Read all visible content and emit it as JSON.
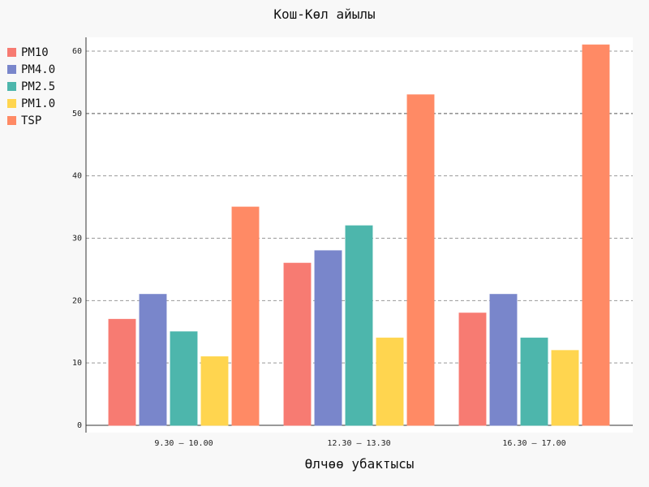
{
  "chart_data": {
    "type": "bar",
    "title": "Кош-Көл айылы",
    "xlabel": "Өлчөө убактысы",
    "ylabel": "",
    "ylim": [
      0,
      62
    ],
    "yticks": [
      0,
      10,
      20,
      30,
      40,
      50,
      60
    ],
    "grid": true,
    "legend_position": "top-left",
    "categories": [
      "9.30 – 10.00",
      "12.30 – 13.30",
      "16.30 – 17.00"
    ],
    "series": [
      {
        "name": "PM10",
        "color": "#f77b72",
        "values": [
          17,
          26,
          18
        ]
      },
      {
        "name": "PM4.0",
        "color": "#7986cb",
        "values": [
          21,
          28,
          21
        ]
      },
      {
        "name": "PM2.5",
        "color": "#4db6ac",
        "values": [
          15,
          32,
          14
        ]
      },
      {
        "name": "PM1.0",
        "color": "#ffd54f",
        "values": [
          11,
          14,
          12
        ]
      },
      {
        "name": "TSP",
        "color": "#ff8a65",
        "values": [
          35,
          53,
          61
        ]
      }
    ]
  }
}
